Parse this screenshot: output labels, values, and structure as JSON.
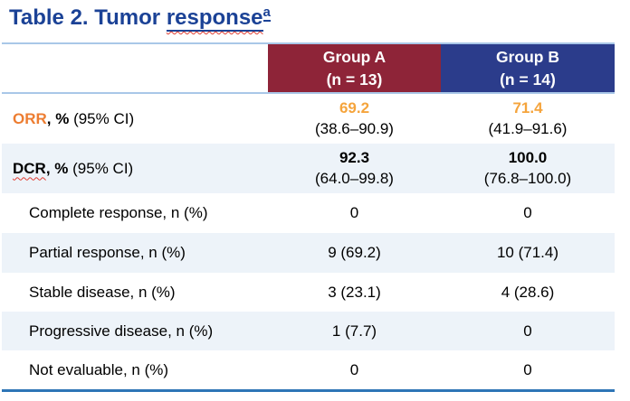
{
  "title": {
    "prefix": "Table 2. Tumor ",
    "underlined_word": "response",
    "superscript": "a"
  },
  "header": {
    "group_a": {
      "name": "Group A",
      "n": "(n = 13)"
    },
    "group_b": {
      "name": "Group B",
      "n": "(n = 14)"
    }
  },
  "rows": {
    "orr": {
      "term": "ORR",
      "unit": ", %",
      "ci_label": " (95% CI)",
      "a_value": "69.2",
      "a_ci": "(38.6–90.9)",
      "b_value": "71.4",
      "b_ci": "(41.9–91.6)"
    },
    "dcr": {
      "term": "DCR",
      "unit": ", %",
      "ci_label": " (95% CI)",
      "a_value": "92.3",
      "a_ci": "(64.0–99.8)",
      "b_value": "100.0",
      "b_ci": "(76.8–100.0)"
    },
    "complete_response": {
      "label": "Complete response, n (%)",
      "a": "0",
      "b": "0"
    },
    "partial_response": {
      "label": "Partial response, n (%)",
      "a": "9 (69.2)",
      "b": "10 (71.4)"
    },
    "stable_disease": {
      "label": "Stable disease, n (%)",
      "a": "3 (23.1)",
      "b": "4 (28.6)"
    },
    "progressive_disease": {
      "label": "Progressive disease, n (%)",
      "a": "1 (7.7)",
      "b": "0"
    },
    "not_evaluable": {
      "label": "Not evaluable, n (%)",
      "a": "0",
      "b": "0"
    }
  },
  "colors": {
    "title_blue": "#1B4296",
    "group_a_maroon": "#8E2438",
    "group_b_navy": "#2B3C8B",
    "row_shade": "#EDF3F9",
    "light_rule": "#A9C7E8",
    "bottom_rule": "#2E75B6",
    "orr_label_orange": "#ED7D31",
    "orr_value_orange": "#F5A43C",
    "squiggle_red": "#E03C31"
  }
}
